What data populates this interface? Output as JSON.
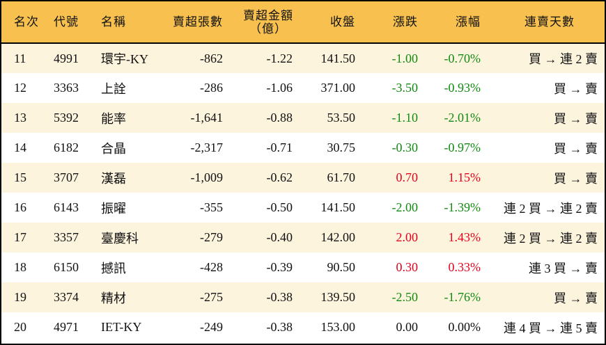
{
  "colors": {
    "header_bg": "#F8C14F",
    "row_alt_bg": "#FDF4DE",
    "up": "#e8001c",
    "down": "#118a11"
  },
  "headers": [
    "名次",
    "代號",
    "名稱",
    "賣超張數",
    "賣超金額",
    "（億）",
    "收盤",
    "漲跌",
    "漲幅",
    "連賣天數"
  ],
  "rows": [
    {
      "rank": "11",
      "code": "4991",
      "name": "環宇-KY",
      "shares": "-862",
      "amount": "-1.22",
      "close": "141.50",
      "change": "-1.00",
      "pct": "-0.70%",
      "streak": "買 → 連 2 賣",
      "dir": "down"
    },
    {
      "rank": "12",
      "code": "3363",
      "name": "上詮",
      "shares": "-286",
      "amount": "-1.06",
      "close": "371.00",
      "change": "-3.50",
      "pct": "-0.93%",
      "streak": "買 → 賣",
      "dir": "down"
    },
    {
      "rank": "13",
      "code": "5392",
      "name": "能率",
      "shares": "-1,641",
      "amount": "-0.88",
      "close": "53.50",
      "change": "-1.10",
      "pct": "-2.01%",
      "streak": "買 → 賣",
      "dir": "down"
    },
    {
      "rank": "14",
      "code": "6182",
      "name": "合晶",
      "shares": "-2,317",
      "amount": "-0.71",
      "close": "30.75",
      "change": "-0.30",
      "pct": "-0.97%",
      "streak": "買 → 賣",
      "dir": "down"
    },
    {
      "rank": "15",
      "code": "3707",
      "name": "漢磊",
      "shares": "-1,009",
      "amount": "-0.62",
      "close": "61.70",
      "change": "0.70",
      "pct": "1.15%",
      "streak": "買 → 賣",
      "dir": "up"
    },
    {
      "rank": "16",
      "code": "6143",
      "name": "振曜",
      "shares": "-355",
      "amount": "-0.50",
      "close": "141.50",
      "change": "-2.00",
      "pct": "-1.39%",
      "streak": "連 2 買 → 連 2 賣",
      "dir": "down"
    },
    {
      "rank": "17",
      "code": "3357",
      "name": "臺慶科",
      "shares": "-279",
      "amount": "-0.40",
      "close": "142.00",
      "change": "2.00",
      "pct": "1.43%",
      "streak": "連 2 買 → 連 2 賣",
      "dir": "up"
    },
    {
      "rank": "18",
      "code": "6150",
      "name": "撼訊",
      "shares": "-428",
      "amount": "-0.39",
      "close": "90.50",
      "change": "0.30",
      "pct": "0.33%",
      "streak": "連 3 買 → 賣",
      "dir": "up"
    },
    {
      "rank": "19",
      "code": "3374",
      "name": "精材",
      "shares": "-275",
      "amount": "-0.38",
      "close": "139.50",
      "change": "-2.50",
      "pct": "-1.76%",
      "streak": "買 → 賣",
      "dir": "down"
    },
    {
      "rank": "20",
      "code": "4971",
      "name": "IET-KY",
      "shares": "-249",
      "amount": "-0.38",
      "close": "153.00",
      "change": "0.00",
      "pct": "0.00%",
      "streak": "連 4 買 → 連 5 賣",
      "dir": "flat"
    }
  ]
}
